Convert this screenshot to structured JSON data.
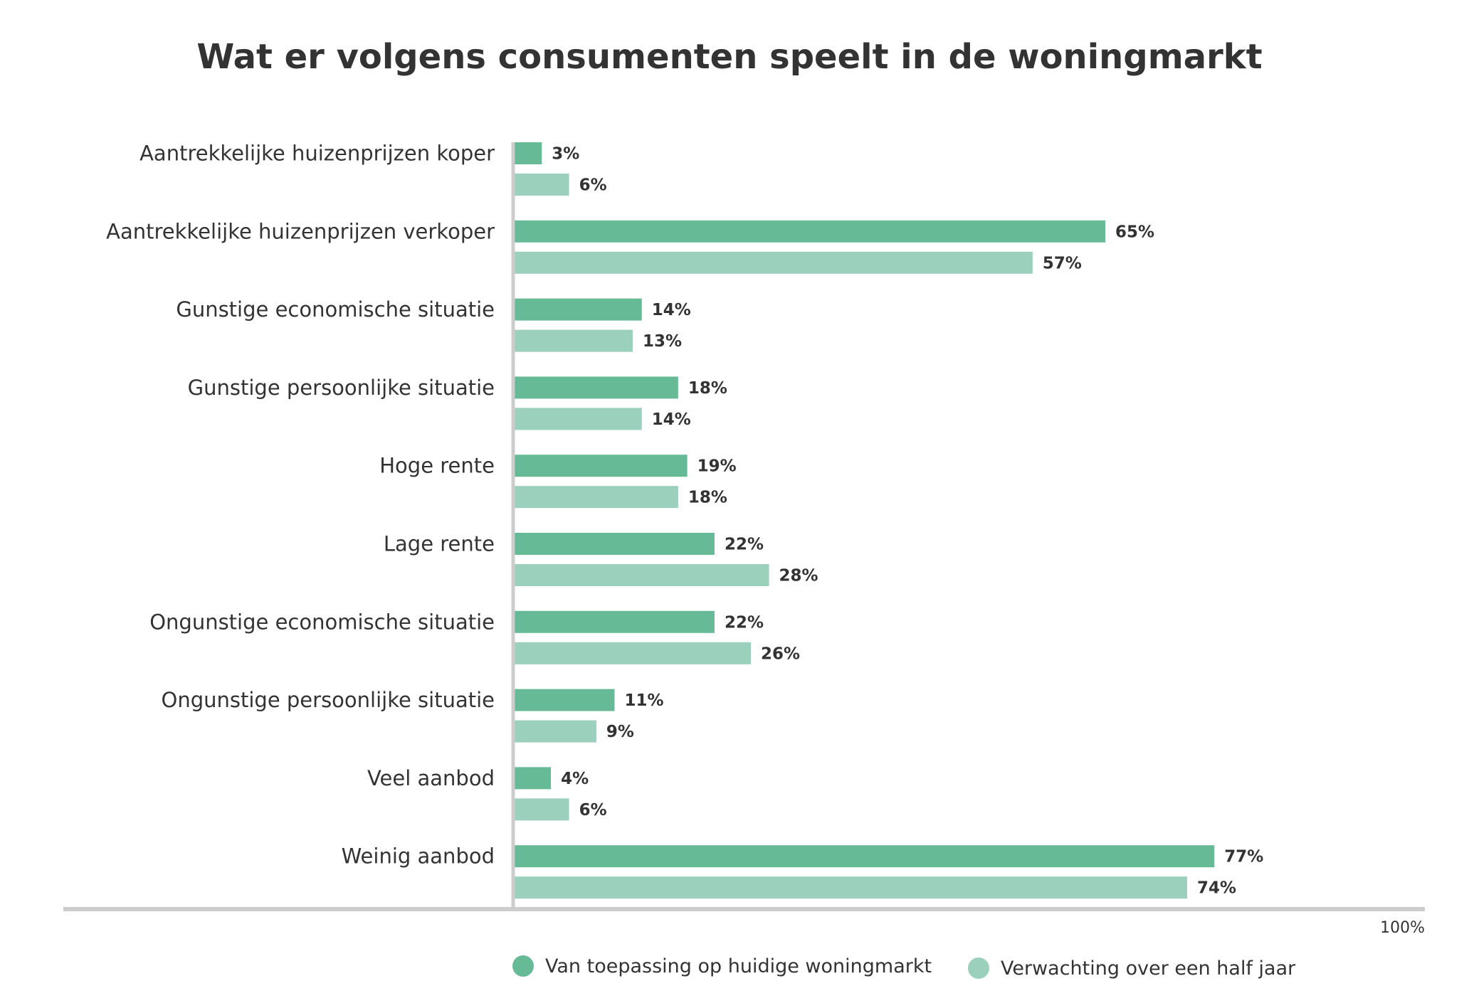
{
  "chart_data": {
    "type": "bar",
    "orientation": "horizontal",
    "title": "Wat er volgens consumenten speelt in de woningmarkt",
    "categories": [
      "Aantrekkelijke huizenprijzen koper",
      "Aantrekkelijke huizenprijzen verkoper",
      "Gunstige economische situatie",
      "Gunstige persoonlijke situatie",
      "Hoge rente",
      "Lage rente",
      "Ongunstige economische situatie",
      "Ongunstige persoonlijke situatie",
      "Veel aanbod",
      "Weinig aanbod"
    ],
    "series": [
      {
        "name": "Van toepassing op huidige woningmarkt",
        "color": "#66bb96",
        "values": [
          3,
          65,
          14,
          18,
          19,
          22,
          22,
          11,
          4,
          77
        ],
        "labels": [
          "3%",
          "65%",
          "14%",
          "18%",
          "19%",
          "22%",
          "22%",
          "11%",
          "4%",
          "77%"
        ]
      },
      {
        "name": "Verwachting over een half jaar",
        "color": "#9bd0bc",
        "values": [
          6,
          57,
          13,
          14,
          18,
          28,
          26,
          9,
          6,
          74
        ],
        "labels": [
          "6%",
          "57%",
          "13%",
          "14%",
          "18%",
          "28%",
          "26%",
          "9%",
          "6%",
          "74%"
        ]
      }
    ],
    "xlim": [
      0,
      100
    ],
    "axis_max_label": "100%",
    "grid": false,
    "legend": "bottom",
    "axis_color": "#cccccc"
  }
}
